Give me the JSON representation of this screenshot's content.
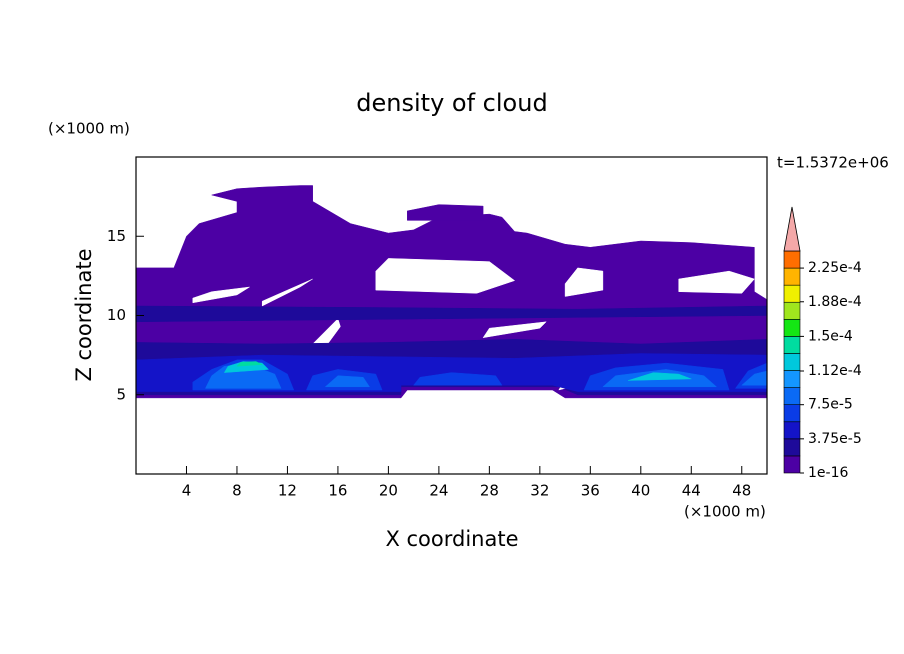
{
  "chart_data": {
    "type": "contour",
    "title": "density of cloud",
    "x_label": "X coordinate",
    "y_label": "Z coordinate",
    "x_unit": "(×1000 m)",
    "y_unit": "(×1000 m)",
    "time_label": "t=1.5372e+06",
    "xlim": [
      0,
      50
    ],
    "ylim": [
      0,
      20
    ],
    "xticks": [
      4,
      8,
      12,
      16,
      20,
      24,
      28,
      32,
      36,
      40,
      44,
      48
    ],
    "yticks": [
      5,
      10,
      15
    ],
    "colorbar": {
      "levels": [
        1e-16,
        1.875e-05,
        3.75e-05,
        5.625e-05,
        7.5e-05,
        9.375e-05,
        0.0001125,
        0.00013125,
        0.00015,
        0.00016875,
        0.0001875,
        0.00020625,
        0.000225
      ],
      "colors": [
        "#4c00a4",
        "#1e0a9a",
        "#1414c8",
        "#0a3ce6",
        "#0a6af5",
        "#1496ff",
        "#00c8dc",
        "#00dca0",
        "#14e614",
        "#a0e61e",
        "#f0f000",
        "#ffb400",
        "#ff6e00"
      ],
      "clim": [
        1e-16,
        0.00024375
      ],
      "over_color": "#f4a8a8",
      "ticks": [
        1e-16,
        {
          "value": 3.75e-05,
          "label": "3.75e-5"
        },
        {
          "value": 7.5e-05,
          "label": "7.5e-5"
        },
        {
          "value": 0.000112,
          "label": "1.12e-4"
        },
        {
          "value": 0.00015,
          "label": "1.5e-4"
        },
        {
          "value": 0.000188,
          "label": "1.88e-4"
        },
        {
          "value": 0.000225,
          "label": "2.25e-4"
        }
      ]
    },
    "regions": [
      {
        "level": 1e-16,
        "xs": [
          0,
          21,
          21.5,
          33,
          34,
          50,
          50,
          49,
          49,
          44,
          40,
          36,
          34,
          31,
          30,
          29,
          28,
          24,
          22,
          20,
          17,
          14,
          14,
          13,
          10,
          8,
          6,
          8,
          8,
          5,
          4,
          3,
          0
        ],
        "zs": [
          4.8,
          4.8,
          5.3,
          5.3,
          4.8,
          4.8,
          11,
          11.5,
          14.3,
          14.6,
          14.7,
          14.3,
          14.5,
          15.2,
          15.3,
          16.2,
          16.4,
          16.2,
          15.4,
          15.2,
          15.8,
          17.2,
          18.2,
          18.2,
          18.1,
          18,
          17.6,
          17.2,
          16.5,
          15.8,
          15,
          13,
          13
        ]
      },
      {
        "level": 1e-16,
        "xs": [
          21.5,
          27.5,
          27.5,
          24,
          21.5
        ],
        "zs": [
          16,
          16,
          16.9,
          17,
          16.6
        ]
      },
      {
        "level": null,
        "xs": [
          4.5,
          8,
          9,
          6,
          4.5
        ],
        "zs": [
          10.8,
          11.3,
          11.8,
          11.5,
          11.1
        ]
      },
      {
        "level": null,
        "xs": [
          10,
          13,
          14,
          12,
          10
        ],
        "zs": [
          10.6,
          11.8,
          12.3,
          11.6,
          10.9
        ]
      },
      {
        "level": null,
        "xs": [
          19,
          27,
          30,
          28,
          20,
          19
        ],
        "zs": [
          11.6,
          11.4,
          12.2,
          13.4,
          13.6,
          12.8
        ]
      },
      {
        "level": null,
        "xs": [
          34,
          37,
          37,
          35,
          34
        ],
        "zs": [
          11.2,
          11.6,
          12.8,
          13,
          12
        ]
      },
      {
        "level": null,
        "xs": [
          43,
          48,
          49,
          47,
          43
        ],
        "zs": [
          11.5,
          11.4,
          12.3,
          12.8,
          12.3
        ]
      },
      {
        "level": null,
        "xs": [
          27.5,
          32,
          32.5,
          28
        ],
        "zs": [
          8.6,
          9.2,
          9.6,
          9.2
        ]
      },
      {
        "level": null,
        "xs": [
          14,
          16,
          16.2,
          15
        ],
        "zs": [
          8.2,
          9.8,
          9.3,
          8
        ]
      },
      {
        "level": 1.875e-05,
        "xs": [
          0,
          50,
          50,
          35,
          20,
          0
        ],
        "zs": [
          9.6,
          10,
          10.6,
          10.4,
          10.5,
          10.6
        ]
      },
      {
        "level": 1.875e-05,
        "xs": [
          0,
          21,
          21,
          33.5,
          35,
          50,
          50,
          40,
          30,
          20,
          10,
          0
        ],
        "zs": [
          5,
          5,
          5.5,
          5.5,
          5,
          5,
          8.5,
          8.2,
          8.5,
          8.3,
          8.2,
          8.3
        ]
      },
      {
        "level": null,
        "xs": [
          33.5,
          35,
          35.5,
          34.5
        ],
        "zs": [
          5.3,
          5.6,
          6.8,
          6.7
        ]
      },
      {
        "level": 3.75e-05,
        "xs": [
          0,
          21,
          21,
          33,
          35,
          50,
          50,
          40,
          30,
          20,
          10,
          0
        ],
        "zs": [
          5.2,
          5.2,
          5.6,
          5.6,
          5.2,
          5.2,
          7.5,
          7.6,
          7.3,
          7.4,
          7.5,
          7.2
        ]
      },
      {
        "level": 5.625e-05,
        "xs": [
          4.5,
          12.5,
          12,
          10,
          8,
          6,
          4.5
        ],
        "zs": [
          5.3,
          5.3,
          6.3,
          7.2,
          7.2,
          6.6,
          5.8
        ]
      },
      {
        "level": 5.625e-05,
        "xs": [
          13.5,
          19.5,
          19,
          16,
          14
        ],
        "zs": [
          5.3,
          5.3,
          6.3,
          6.6,
          6.2
        ]
      },
      {
        "level": 5.625e-05,
        "xs": [
          22,
          29,
          28.5,
          25,
          22.5
        ],
        "zs": [
          5.6,
          5.6,
          6.2,
          6.4,
          6.1
        ]
      },
      {
        "level": 5.625e-05,
        "xs": [
          35.5,
          47,
          46.5,
          42,
          38,
          36
        ],
        "zs": [
          5.3,
          5.3,
          6.6,
          7,
          6.7,
          6.2
        ]
      },
      {
        "level": 5.625e-05,
        "xs": [
          47.5,
          50,
          50,
          48.5
        ],
        "zs": [
          5.4,
          5.4,
          7,
          6.5
        ]
      },
      {
        "level": 7.5e-05,
        "xs": [
          5.5,
          11.5,
          11,
          9,
          7,
          6
        ],
        "zs": [
          5.4,
          5.4,
          6.3,
          6.9,
          6.8,
          6.2
        ]
      },
      {
        "level": 7.5e-05,
        "xs": [
          15,
          18.5,
          18,
          16
        ],
        "zs": [
          5.5,
          5.5,
          6.1,
          6.2
        ]
      },
      {
        "level": 7.5e-05,
        "xs": [
          37,
          46,
          45,
          42,
          38
        ],
        "zs": [
          5.5,
          5.5,
          6.2,
          6.6,
          6.2
        ]
      },
      {
        "level": 7.5e-05,
        "xs": [
          48,
          50,
          50,
          49
        ],
        "zs": [
          5.6,
          5.6,
          6.5,
          6.3
        ]
      },
      {
        "level": 0.0001125,
        "xs": [
          7,
          10.5,
          10,
          8.5,
          7.3
        ],
        "zs": [
          6.4,
          6.6,
          7,
          7.1,
          6.8
        ]
      },
      {
        "level": 0.0001125,
        "xs": [
          39,
          44,
          43,
          41
        ],
        "zs": [
          5.9,
          6,
          6.3,
          6.4
        ]
      },
      {
        "level": 0.00013125,
        "xs": [
          8,
          10,
          9.5,
          8.3
        ],
        "zs": [
          6.8,
          6.9,
          7.1,
          7.05
        ]
      }
    ]
  }
}
